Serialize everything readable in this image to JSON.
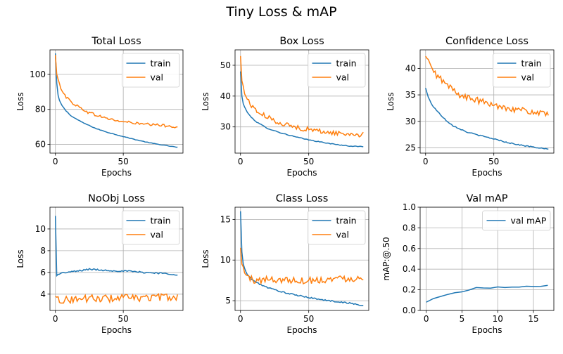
{
  "figure": {
    "suptitle": "Tiny Loss & mAP",
    "colors": {
      "train": "#1f77b4",
      "val": "#ff7f0e",
      "grid": "#b0b0b0",
      "axis": "#000000"
    }
  },
  "chart_data": [
    {
      "type": "line",
      "title": "Total Loss",
      "xlabel": "Epochs",
      "ylabel": "Loss",
      "xlim": [
        -4,
        94
      ],
      "ylim": [
        55,
        114
      ],
      "xticks": [
        0,
        50
      ],
      "yticks": [
        60,
        80,
        100
      ],
      "grid": true,
      "legend": "top-right",
      "series": [
        {
          "name": "train",
          "color": "#1f77b4",
          "noise": 0.15,
          "points": [
            [
              0,
              112
            ],
            [
              1,
              95
            ],
            [
              2,
              88
            ],
            [
              3,
              85
            ],
            [
              5,
              82
            ],
            [
              8,
              79
            ],
            [
              12,
              76
            ],
            [
              20,
              72.5
            ],
            [
              30,
              69
            ],
            [
              40,
              66.5
            ],
            [
              50,
              64.5
            ],
            [
              60,
              62.5
            ],
            [
              70,
              60.8
            ],
            [
              80,
              59.5
            ],
            [
              90,
              58.3
            ]
          ]
        },
        {
          "name": "val",
          "color": "#ff7f0e",
          "noise": 0.8,
          "points": [
            [
              0,
              111
            ],
            [
              1,
              100
            ],
            [
              3,
              94
            ],
            [
              5,
              91
            ],
            [
              8,
              87
            ],
            [
              12,
              84
            ],
            [
              18,
              81
            ],
            [
              25,
              78
            ],
            [
              35,
              75.5
            ],
            [
              45,
              73.5
            ],
            [
              55,
              72.5
            ],
            [
              65,
              71.5
            ],
            [
              75,
              71
            ],
            [
              85,
              70.5
            ],
            [
              90,
              70
            ]
          ]
        }
      ]
    },
    {
      "type": "line",
      "title": "Box Loss",
      "xlabel": "Epochs",
      "ylabel": "Loss",
      "xlim": [
        -4,
        94
      ],
      "ylim": [
        21.5,
        55
      ],
      "xticks": [
        0,
        50
      ],
      "yticks": [
        30,
        40,
        50
      ],
      "grid": true,
      "legend": "top-right",
      "series": [
        {
          "name": "train",
          "color": "#1f77b4",
          "noise": 0.12,
          "points": [
            [
              0,
              48
            ],
            [
              1,
              40
            ],
            [
              2,
              37.5
            ],
            [
              4,
              35.5
            ],
            [
              7,
              33.5
            ],
            [
              12,
              31.5
            ],
            [
              20,
              29.5
            ],
            [
              30,
              28
            ],
            [
              40,
              26.8
            ],
            [
              50,
              25.8
            ],
            [
              60,
              25
            ],
            [
              70,
              24.3
            ],
            [
              80,
              23.8
            ],
            [
              90,
              23.6
            ]
          ]
        },
        {
          "name": "val",
          "color": "#ff7f0e",
          "noise": 0.8,
          "points": [
            [
              0,
              53
            ],
            [
              1,
              45
            ],
            [
              3,
              41
            ],
            [
              5,
              39
            ],
            [
              8,
              37
            ],
            [
              12,
              35
            ],
            [
              18,
              33.5
            ],
            [
              25,
              32
            ],
            [
              35,
              30.5
            ],
            [
              45,
              29.5
            ],
            [
              55,
              28.8
            ],
            [
              65,
              28.2
            ],
            [
              75,
              27.8
            ],
            [
              85,
              27.6
            ],
            [
              90,
              27.5
            ]
          ]
        }
      ]
    },
    {
      "type": "line",
      "title": "Confidence Loss",
      "xlabel": "Epochs",
      "ylabel": "Loss",
      "xlim": [
        -4,
        94
      ],
      "ylim": [
        24,
        43.5
      ],
      "xticks": [
        0,
        50
      ],
      "yticks": [
        25,
        30,
        35,
        40
      ],
      "grid": true,
      "legend": "top-right",
      "series": [
        {
          "name": "train",
          "color": "#1f77b4",
          "noise": 0.1,
          "points": [
            [
              0,
              36.3
            ],
            [
              2,
              34.5
            ],
            [
              5,
              33
            ],
            [
              10,
              31.5
            ],
            [
              15,
              30.2
            ],
            [
              20,
              29.2
            ],
            [
              30,
              28
            ],
            [
              40,
              27.3
            ],
            [
              50,
              26.7
            ],
            [
              60,
              26
            ],
            [
              70,
              25.5
            ],
            [
              80,
              25.1
            ],
            [
              90,
              24.7
            ]
          ]
        },
        {
          "name": "val",
          "color": "#ff7f0e",
          "noise": 0.6,
          "points": [
            [
              0,
              42.3
            ],
            [
              2,
              41.5
            ],
            [
              5,
              39.5
            ],
            [
              10,
              38.3
            ],
            [
              15,
              37
            ],
            [
              20,
              36
            ],
            [
              25,
              35
            ],
            [
              30,
              34.5
            ],
            [
              40,
              33.8
            ],
            [
              50,
              33
            ],
            [
              60,
              32.6
            ],
            [
              70,
              32.1
            ],
            [
              80,
              31.7
            ],
            [
              90,
              31.2
            ]
          ]
        }
      ]
    },
    {
      "type": "line",
      "title": "NoObj Loss",
      "xlabel": "Epochs",
      "ylabel": "Loss",
      "xlim": [
        -4,
        94
      ],
      "ylim": [
        2.5,
        12
      ],
      "xticks": [
        0,
        50
      ],
      "yticks": [
        4,
        6,
        8,
        10
      ],
      "grid": true,
      "legend": "top-right",
      "series": [
        {
          "name": "train",
          "color": "#1f77b4",
          "noise": 0.07,
          "points": [
            [
              0,
              11.2
            ],
            [
              1,
              5.7
            ],
            [
              3,
              5.9
            ],
            [
              8,
              6
            ],
            [
              15,
              6.1
            ],
            [
              25,
              6.3
            ],
            [
              35,
              6.2
            ],
            [
              45,
              6.15
            ],
            [
              55,
              6.1
            ],
            [
              65,
              6
            ],
            [
              75,
              5.95
            ],
            [
              85,
              5.85
            ],
            [
              90,
              5.8
            ]
          ]
        },
        {
          "name": "val",
          "color": "#ff7f0e",
          "noise": 0.35,
          "points": [
            [
              0,
              3.8
            ],
            [
              5,
              3.4
            ],
            [
              10,
              3.5
            ],
            [
              20,
              3.6
            ],
            [
              30,
              3.6
            ],
            [
              40,
              3.6
            ],
            [
              50,
              3.7
            ],
            [
              60,
              3.6
            ],
            [
              70,
              3.7
            ],
            [
              80,
              3.7
            ],
            [
              90,
              3.7
            ]
          ]
        }
      ]
    },
    {
      "type": "line",
      "title": "Class Loss",
      "xlabel": "Epochs",
      "ylabel": "Loss",
      "xlim": [
        -4,
        94
      ],
      "ylim": [
        3.8,
        16.5
      ],
      "xticks": [
        0,
        50
      ],
      "yticks": [
        5,
        10,
        15
      ],
      "grid": true,
      "legend": "top-right",
      "series": [
        {
          "name": "train",
          "color": "#1f77b4",
          "noise": 0.08,
          "points": [
            [
              0,
              16
            ],
            [
              1,
              11
            ],
            [
              2,
              9.5
            ],
            [
              4,
              8.5
            ],
            [
              7,
              7.8
            ],
            [
              12,
              7.2
            ],
            [
              20,
              6.6
            ],
            [
              30,
              6.1
            ],
            [
              40,
              5.7
            ],
            [
              50,
              5.4
            ],
            [
              60,
              5.1
            ],
            [
              70,
              4.9
            ],
            [
              80,
              4.7
            ],
            [
              90,
              4.4
            ]
          ]
        },
        {
          "name": "val",
          "color": "#ff7f0e",
          "noise": 0.45,
          "points": [
            [
              0,
              11.5
            ],
            [
              1,
              9.5
            ],
            [
              3,
              8.5
            ],
            [
              6,
              7.8
            ],
            [
              10,
              7.5
            ],
            [
              20,
              7.6
            ],
            [
              30,
              7.6
            ],
            [
              40,
              7.5
            ],
            [
              50,
              7.5
            ],
            [
              60,
              7.6
            ],
            [
              70,
              7.7
            ],
            [
              80,
              7.8
            ],
            [
              90,
              7.7
            ]
          ]
        }
      ]
    },
    {
      "type": "line",
      "title": "Val mAP",
      "xlabel": "Epochs",
      "ylabel": "mAP:@.50",
      "xlim": [
        -0.85,
        17.85
      ],
      "ylim": [
        0,
        1
      ],
      "xticks": [
        0,
        5,
        10,
        15
      ],
      "yticks": [
        0,
        0.2,
        0.4,
        0.6,
        0.8,
        1.0
      ],
      "ytick_labels": [
        "0.0",
        "0.2",
        "0.4",
        "0.6",
        "0.8",
        "1.0"
      ],
      "grid": true,
      "legend": "top-right",
      "series": [
        {
          "name": "val mAP",
          "color": "#1f77b4",
          "noise": 0,
          "points": [
            [
              0,
              0.08
            ],
            [
              1,
              0.115
            ],
            [
              2,
              0.135
            ],
            [
              3,
              0.155
            ],
            [
              4,
              0.172
            ],
            [
              5,
              0.18
            ],
            [
              6,
              0.198
            ],
            [
              7,
              0.222
            ],
            [
              8,
              0.218
            ],
            [
              9,
              0.216
            ],
            [
              10,
              0.228
            ],
            [
              11,
              0.222
            ],
            [
              12,
              0.226
            ],
            [
              13,
              0.226
            ],
            [
              14,
              0.235
            ],
            [
              15,
              0.232
            ],
            [
              16,
              0.233
            ],
            [
              17,
              0.243
            ]
          ]
        }
      ]
    }
  ]
}
